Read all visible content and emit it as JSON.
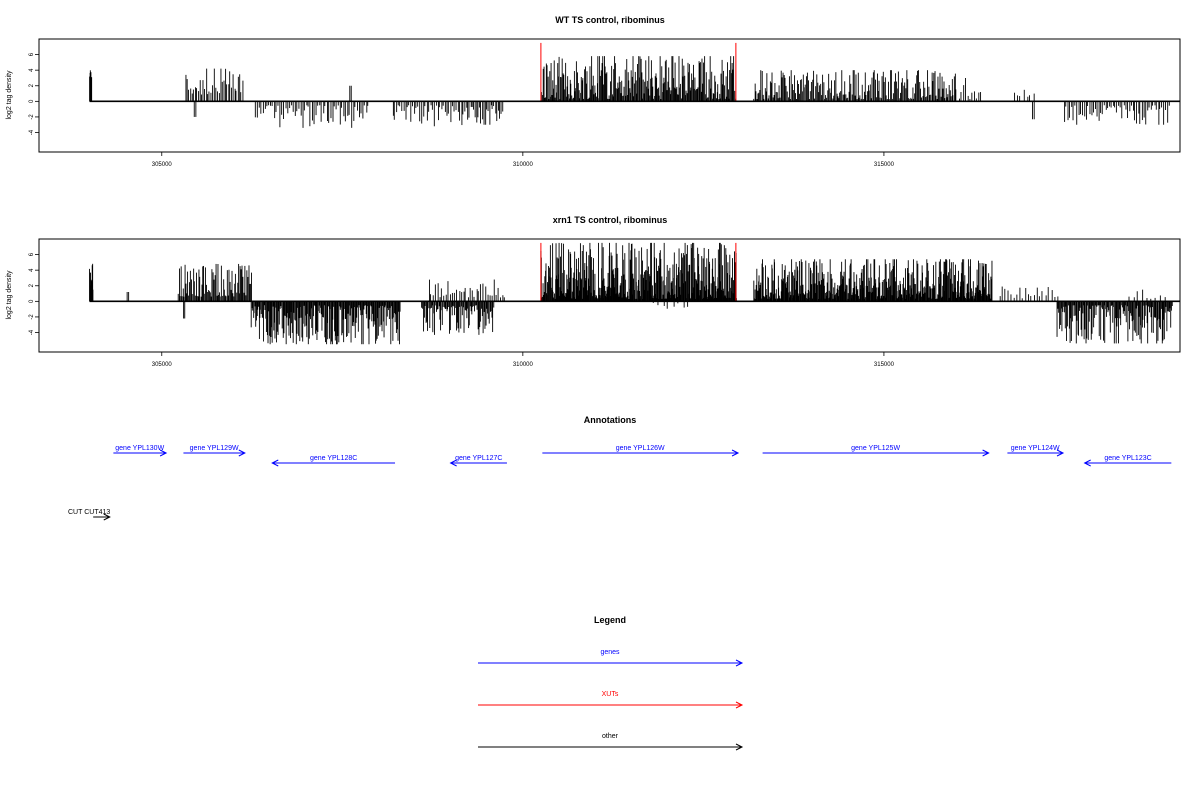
{
  "colors": {
    "gene": "#0000ff",
    "xut": "#ff0000",
    "other": "#000000",
    "frame": "#000000"
  },
  "x_axis": {
    "ticks": [
      305000,
      310000,
      315000
    ],
    "range": [
      303300,
      319100
    ]
  },
  "chart_data": [
    {
      "type": "bar",
      "title": "WT TS control, ribominus",
      "xlabel": "",
      "ylabel": "log2 tag density",
      "ylim": [
        -6.5,
        8.0
      ],
      "yticks": [
        -4,
        -2,
        0,
        2,
        4,
        6
      ],
      "baseline_x": [
        304000,
        319100
      ],
      "vertical_markers": {
        "color": "#ff0000",
        "x": [
          310250,
          312950
        ]
      },
      "segments": [
        {
          "start": 304000,
          "end": 304030,
          "step": 6,
          "amp": [
            3.0,
            4.2
          ],
          "sign": 1
        },
        {
          "start": 305330,
          "end": 306140,
          "step": 22,
          "amp": [
            0.8,
            4.2
          ],
          "sign": 1
        },
        {
          "start": 305450,
          "end": 305470,
          "step": 20,
          "amp": [
            2.0,
            2.0
          ],
          "sign": -1
        },
        {
          "start": 306300,
          "end": 307880,
          "step": 26,
          "amp": [
            0.5,
            3.4
          ],
          "sign": -1
        },
        {
          "start": 307600,
          "end": 307620,
          "step": 20,
          "amp": [
            2.0,
            2.0
          ],
          "sign": 1
        },
        {
          "start": 308200,
          "end": 309200,
          "step": 25,
          "amp": [
            0.5,
            3.2
          ],
          "sign": -1
        },
        {
          "start": 309220,
          "end": 309720,
          "step": 20,
          "amp": [
            0.5,
            3.0
          ],
          "sign": -1
        },
        {
          "start": 310260,
          "end": 312950,
          "step": 11,
          "amp": [
            0.3,
            5.8
          ],
          "sign": 1
        },
        {
          "start": 313200,
          "end": 316000,
          "step": 14,
          "amp": [
            0.3,
            4.0
          ],
          "sign": 1
        },
        {
          "start": 316040,
          "end": 316360,
          "step": 30,
          "amp": [
            0.3,
            3.0
          ],
          "sign": 1
        },
        {
          "start": 316800,
          "end": 317100,
          "step": 45,
          "amp": [
            0.5,
            1.5
          ],
          "sign": 1
        },
        {
          "start": 317060,
          "end": 317080,
          "step": 20,
          "amp": [
            2.3,
            2.3
          ],
          "sign": -1
        },
        {
          "start": 317500,
          "end": 318950,
          "step": 25,
          "amp": [
            0.5,
            3.0
          ],
          "sign": -1
        }
      ]
    },
    {
      "type": "bar",
      "title": "xrn1 TS control, ribominus",
      "xlabel": "",
      "ylabel": "log2 tag density",
      "ylim": [
        -6.5,
        8.0
      ],
      "yticks": [
        -4,
        -2,
        0,
        2,
        4,
        6
      ],
      "baseline_x": [
        304000,
        319100
      ],
      "vertical_markers": {
        "color": "#ff0000",
        "x": [
          310250,
          312950
        ]
      },
      "segments": [
        {
          "start": 304000,
          "end": 304050,
          "step": 6,
          "amp": [
            1.5,
            4.9
          ],
          "sign": 1
        },
        {
          "start": 304520,
          "end": 304540,
          "step": 20,
          "amp": [
            1.2,
            1.2
          ],
          "sign": 1
        },
        {
          "start": 305230,
          "end": 306250,
          "step": 13,
          "amp": [
            0.6,
            4.8
          ],
          "sign": 1
        },
        {
          "start": 305300,
          "end": 305330,
          "step": 20,
          "amp": [
            2.2,
            2.2
          ],
          "sign": -1
        },
        {
          "start": 306240,
          "end": 308300,
          "step": 10,
          "amp": [
            0.5,
            5.5
          ],
          "sign": -1
        },
        {
          "start": 308600,
          "end": 309600,
          "step": 12,
          "amp": [
            0.5,
            4.3
          ],
          "sign": -1
        },
        {
          "start": 308700,
          "end": 309750,
          "step": 30,
          "amp": [
            0.5,
            2.8
          ],
          "sign": 1
        },
        {
          "start": 310250,
          "end": 312960,
          "step": 7,
          "amp": [
            0.3,
            7.5
          ],
          "sign": 1
        },
        {
          "start": 311800,
          "end": 312300,
          "step": 70,
          "amp": [
            0.2,
            1.3
          ],
          "sign": -1
        },
        {
          "start": 313200,
          "end": 316500,
          "step": 8,
          "amp": [
            0.3,
            5.4
          ],
          "sign": 1
        },
        {
          "start": 316600,
          "end": 317400,
          "step": 40,
          "amp": [
            0.3,
            1.9
          ],
          "sign": 1
        },
        {
          "start": 317400,
          "end": 319000,
          "step": 11,
          "amp": [
            0.5,
            5.4
          ],
          "sign": -1
        },
        {
          "start": 318400,
          "end": 318900,
          "step": 60,
          "amp": [
            0.3,
            1.5
          ],
          "sign": 1
        }
      ]
    }
  ],
  "annotations": {
    "title": "Annotations",
    "genes": [
      {
        "label": "gene YPL130W",
        "start": 304330,
        "end": 305060,
        "strand": "+",
        "row": 0
      },
      {
        "label": "gene YPL129W",
        "start": 305300,
        "end": 306150,
        "strand": "+",
        "row": 0
      },
      {
        "label": "gene YPL128C",
        "start": 306530,
        "end": 308230,
        "strand": "-",
        "row": 1
      },
      {
        "label": "gene YPL127C",
        "start": 309000,
        "end": 309780,
        "strand": "-",
        "row": 1
      },
      {
        "label": "gene YPL126W",
        "start": 310270,
        "end": 312980,
        "strand": "+",
        "row": 0
      },
      {
        "label": "gene YPL125W",
        "start": 313320,
        "end": 316450,
        "strand": "+",
        "row": 0
      },
      {
        "label": "gene YPL124W",
        "start": 316710,
        "end": 317480,
        "strand": "+",
        "row": 0
      },
      {
        "label": "gene YPL123C",
        "start": 317780,
        "end": 318980,
        "strand": "-",
        "row": 1
      }
    ],
    "others": [
      {
        "label": "CUT CUT413",
        "start": 304050,
        "end": 304280,
        "strand": "+"
      }
    ]
  },
  "legend": {
    "title": "Legend",
    "items": [
      {
        "label": "genes",
        "color": "#0000ff"
      },
      {
        "label": "XUTs",
        "color": "#ff0000"
      },
      {
        "label": "other",
        "color": "#000000"
      }
    ]
  }
}
